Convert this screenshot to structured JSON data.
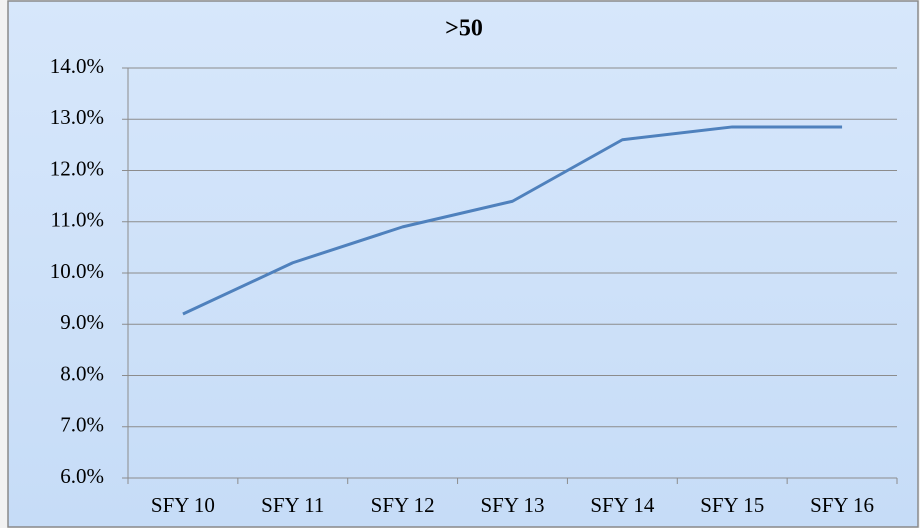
{
  "chart_data": {
    "type": "line",
    "title": ">50",
    "categories": [
      "SFY 10",
      "SFY 11",
      "SFY 12",
      "SFY 13",
      "SFY 14",
      "SFY 15",
      "SFY 16"
    ],
    "series": [
      {
        "name": ">50",
        "color": "#4f81bd",
        "values": [
          9.2,
          10.2,
          10.9,
          11.4,
          12.6,
          12.85,
          12.85
        ]
      }
    ],
    "ylim": [
      6,
      14
    ],
    "yticks": [
      {
        "value": 6,
        "label": "6.0%"
      },
      {
        "value": 7,
        "label": "7.0%"
      },
      {
        "value": 8,
        "label": "8.0%"
      },
      {
        "value": 9,
        "label": "9.0%"
      },
      {
        "value": 10,
        "label": "10.0%"
      },
      {
        "value": 11,
        "label": "11.0%"
      },
      {
        "value": 12,
        "label": "12.0%"
      },
      {
        "value": 13,
        "label": "13.0%"
      },
      {
        "value": 14,
        "label": "14.0%"
      }
    ],
    "grid": true
  }
}
